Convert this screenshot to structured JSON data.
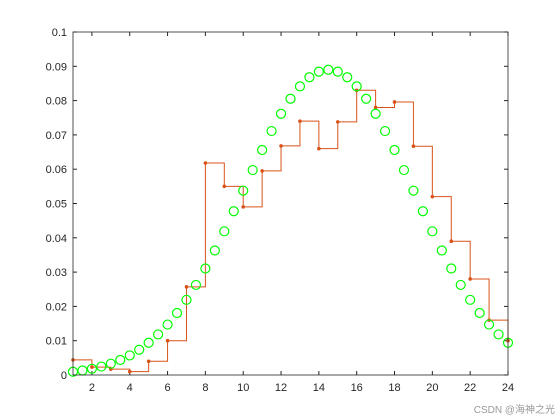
{
  "chart_data": {
    "type": "line",
    "xlim": [
      1,
      24
    ],
    "xticks": [
      2,
      4,
      6,
      8,
      10,
      12,
      14,
      16,
      18,
      20,
      22,
      24
    ],
    "ylim": [
      0,
      0.1
    ],
    "yticks": [
      0,
      0.01,
      0.02,
      0.03,
      0.04,
      0.05,
      0.06,
      0.07,
      0.08,
      0.09,
      0.1
    ],
    "grid": false,
    "series": [
      {
        "style": "stairs",
        "color": "#d95319",
        "x": [
          1,
          2,
          3,
          4,
          5,
          6,
          7,
          8,
          9,
          10,
          11,
          12,
          13,
          14,
          15,
          16,
          17,
          18,
          19,
          20,
          21,
          22,
          23,
          24
        ],
        "values": [
          0.0044,
          0.0023,
          0.0017,
          0.001,
          0.004,
          0.01,
          0.0257,
          0.0618,
          0.055,
          0.049,
          0.0595,
          0.0668,
          0.074,
          0.066,
          0.0738,
          0.083,
          0.078,
          0.0796,
          0.0667,
          0.052,
          0.039,
          0.028,
          0.016,
          0.01
        ]
      },
      {
        "style": "markers",
        "color": "#00ff00",
        "x": [
          1,
          1.5,
          2,
          2.5,
          3,
          3.5,
          4,
          4.5,
          5,
          5.5,
          6,
          6.5,
          7,
          7.5,
          8,
          8.5,
          9,
          9.5,
          10,
          10.5,
          11,
          11.5,
          12,
          12.5,
          13,
          13.5,
          14,
          14.5,
          15,
          15.5,
          16,
          16.5,
          17,
          17.5,
          18,
          18.5,
          19,
          19.5,
          20,
          20.5,
          21,
          21.5,
          22,
          22.5,
          23,
          23.5,
          24
        ],
        "values": [
          0.00095,
          0.00132,
          0.00181,
          0.00246,
          0.0033,
          0.00437,
          0.00571,
          0.00737,
          0.0094,
          0.01183,
          0.01471,
          0.01808,
          0.02192,
          0.02626,
          0.03106,
          0.03629,
          0.04189,
          0.04774,
          0.05374,
          0.05975,
          0.06559,
          0.07112,
          0.07617,
          0.08055,
          0.08415,
          0.08681,
          0.08845,
          0.089,
          0.08845,
          0.08681,
          0.08415,
          0.08055,
          0.07617,
          0.07112,
          0.06559,
          0.05975,
          0.05374,
          0.04774,
          0.04189,
          0.03629,
          0.03106,
          0.02626,
          0.02192,
          0.01808,
          0.01471,
          0.01183,
          0.0094
        ]
      }
    ],
    "watermark": "CSDN @海神之光"
  }
}
